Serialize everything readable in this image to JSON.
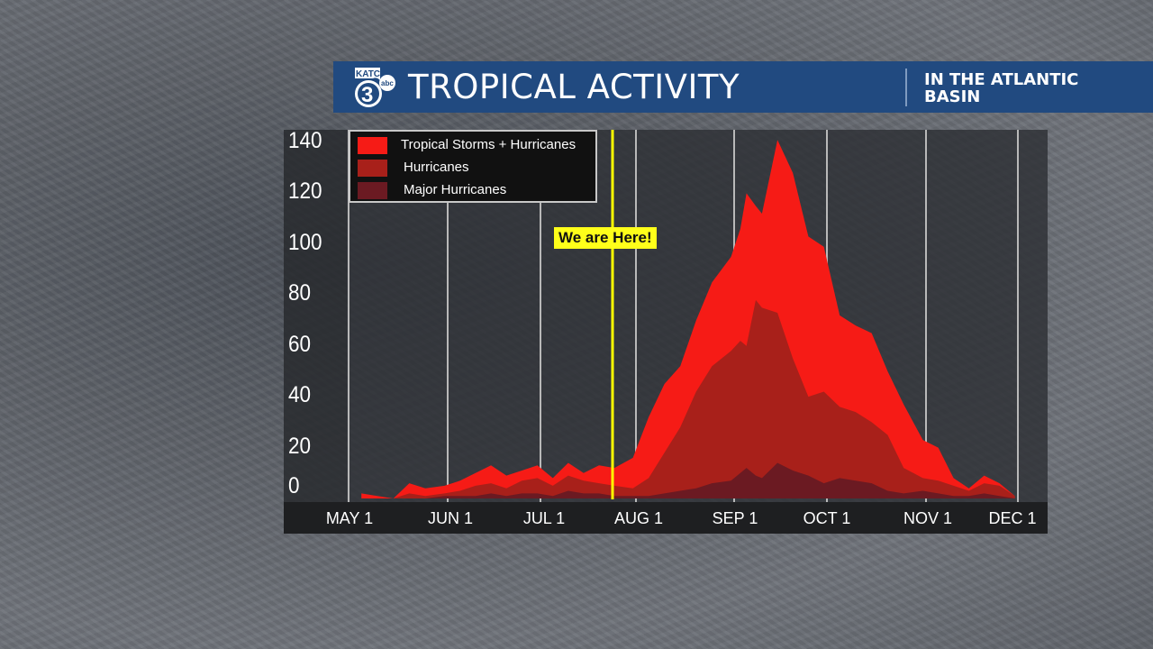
{
  "header": {
    "station_logo": {
      "call_letters": "KATC",
      "channel": "3",
      "network": "abc"
    },
    "title": "TROPICAL ACTIVITY",
    "subtitle": "IN THE ATLANTIC BASIN"
  },
  "annotation": {
    "label": "We are Here!",
    "date_position": "late July",
    "color": "#ffff00"
  },
  "colors": {
    "header_bg": "#214a80",
    "tropical_storms_hurricanes": "#f61b16",
    "hurricanes": "#a8201a",
    "major_hurricanes": "#6b1a22",
    "marker": "#ffff00"
  },
  "chart_data": {
    "type": "area",
    "title": "Tropical Activity in the Atlantic Basin",
    "xlabel": "",
    "ylabel": "",
    "ylim": [
      0,
      140
    ],
    "yticks": [
      0,
      20,
      40,
      60,
      80,
      100,
      120,
      140
    ],
    "xticks": [
      "MAY 1",
      "JUN 1",
      "JUL 1",
      "AUG 1",
      "SEP 1",
      "OCT 1",
      "NOV 1",
      "DEC 1"
    ],
    "grid": "vertical lines at month starts",
    "legend_position": "top-left",
    "x": [
      "May 5",
      "May 10",
      "May 15",
      "May 20",
      "May 25",
      "May 31",
      "Jun 5",
      "Jun 10",
      "Jun 15",
      "Jun 20",
      "Jun 25",
      "Jun 30",
      "Jul 5",
      "Jul 10",
      "Jul 15",
      "Jul 20",
      "Jul 25",
      "Jul 31",
      "Aug 5",
      "Aug 10",
      "Aug 15",
      "Aug 20",
      "Aug 25",
      "Aug 31",
      "Sep 3",
      "Sep 5",
      "Sep 8",
      "Sep 10",
      "Sep 15",
      "Sep 20",
      "Sep 25",
      "Sep 30",
      "Oct 5",
      "Oct 10",
      "Oct 15",
      "Oct 20",
      "Oct 25",
      "Oct 31",
      "Nov 5",
      "Nov 10",
      "Nov 15",
      "Nov 20",
      "Nov 25",
      "Nov 30"
    ],
    "series": [
      {
        "name": "Tropical Storms + Hurricanes",
        "color": "#f61b16",
        "values": [
          2,
          1,
          0,
          6,
          4,
          5,
          7,
          10,
          13,
          9,
          11,
          13,
          8,
          14,
          10,
          13,
          12,
          16,
          32,
          45,
          52,
          70,
          85,
          95,
          106,
          120,
          115,
          112,
          141,
          128,
          103,
          99,
          72,
          68,
          65,
          50,
          37,
          23,
          20,
          8,
          4,
          9,
          6,
          1
        ]
      },
      {
        "name": "Hurricanes",
        "color": "#a8201a",
        "values": [
          0,
          0,
          0,
          2,
          1,
          2,
          3,
          5,
          6,
          4,
          7,
          8,
          5,
          9,
          7,
          6,
          5,
          4,
          8,
          18,
          28,
          42,
          52,
          58,
          62,
          60,
          78,
          75,
          73,
          55,
          40,
          42,
          36,
          34,
          30,
          25,
          12,
          8,
          7,
          5,
          3,
          6,
          5,
          1
        ]
      },
      {
        "name": "Major Hurricanes",
        "color": "#6b1a22",
        "values": [
          0,
          0,
          0,
          0,
          0,
          1,
          1,
          1,
          2,
          1,
          2,
          2,
          1,
          3,
          2,
          2,
          1,
          1,
          1,
          2,
          3,
          4,
          6,
          7,
          10,
          12,
          9,
          8,
          14,
          11,
          9,
          6,
          8,
          7,
          6,
          3,
          2,
          3,
          2,
          1,
          1,
          2,
          1,
          0
        ]
      }
    ],
    "annotations": [
      {
        "text": "We are Here!",
        "x": "Jul 25",
        "style": "vertical yellow line"
      }
    ]
  }
}
